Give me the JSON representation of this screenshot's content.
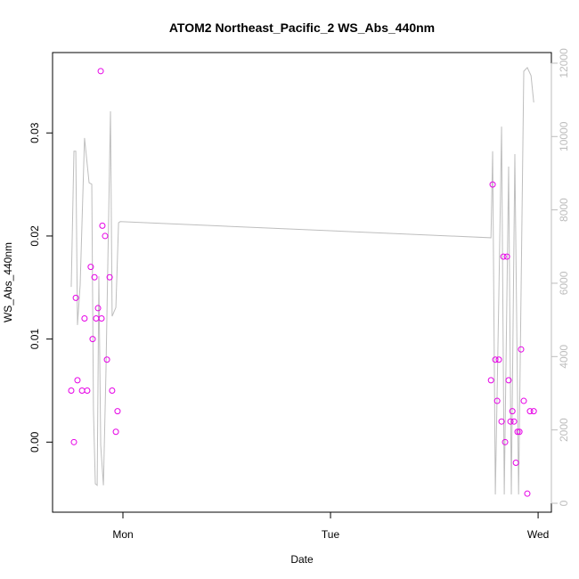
{
  "chart_data": {
    "type": "scatter",
    "title": "ATOM2 Northeast_Pacific_2 WS_Abs_440nm",
    "xlabel": "Date",
    "ylabel": "WS_Abs_440nm",
    "xlim": [
      0.661,
      3.064
    ],
    "xticks": [
      {
        "value": 1,
        "label": "Mon"
      },
      {
        "value": 2,
        "label": "Tue"
      },
      {
        "value": 3,
        "label": "Wed"
      }
    ],
    "ylim": [
      -0.0068,
      0.0378
    ],
    "yticks": [
      {
        "value": 0,
        "label": "0.00"
      },
      {
        "value": 0.01,
        "label": "0.01"
      },
      {
        "value": 0.02,
        "label": "0.02"
      },
      {
        "value": 0.03,
        "label": "0.03"
      }
    ],
    "y2lim": [
      -243,
      12290
    ],
    "y2ticks": [
      0,
      2000,
      4000,
      6000,
      8000,
      10000,
      12000
    ],
    "series": [
      {
        "color": "#e600e6",
        "x": [
          0.751,
          0.764,
          0.773,
          0.781,
          0.803,
          0.815,
          0.828,
          0.845,
          0.854,
          0.863,
          0.871,
          0.88,
          0.893,
          0.897,
          0.901,
          0.914,
          0.923,
          0.936,
          0.948,
          0.966,
          0.974,
          2.773,
          2.781,
          2.794,
          2.803,
          2.811,
          2.824,
          2.833,
          2.841,
          2.85,
          2.858,
          2.867,
          2.876,
          2.884,
          2.893,
          2.901,
          2.91,
          2.918,
          2.931,
          2.948,
          2.961,
          2.979
        ],
        "values": [
          0.005,
          0.0,
          0.014,
          0.006,
          0.005,
          0.012,
          0.005,
          0.017,
          0.01,
          0.016,
          0.012,
          0.013,
          0.036,
          0.012,
          0.021,
          0.02,
          0.008,
          0.016,
          0.005,
          0.001,
          0.003,
          0.006,
          0.025,
          0.008,
          0.004,
          0.008,
          0.002,
          0.018,
          0.0,
          0.018,
          0.006,
          0.002,
          0.003,
          0.002,
          -0.002,
          0.001,
          0.001,
          0.009,
          0.004,
          -0.005,
          0.003,
          0.003
        ]
      },
      {
        "color": "#bebebe",
        "axis": "y2",
        "x": [
          0.751,
          0.764,
          0.773,
          0.781,
          0.794,
          0.815,
          0.837,
          0.85,
          0.858,
          0.867,
          0.876,
          0.884,
          0.893,
          0.906,
          0.918,
          0.94,
          0.948,
          0.966,
          0.979,
          0.987,
          2.773,
          2.781,
          2.794,
          2.811,
          2.824,
          2.837,
          2.858,
          2.871,
          2.888,
          2.906,
          2.931,
          2.948,
          2.966,
          2.979
        ],
        "values": [
          5900,
          9600,
          9600,
          4860,
          5950,
          9960,
          8740,
          8700,
          2550,
          530,
          490,
          6190,
          1580,
          490,
          3520,
          10690,
          5100,
          5340,
          7650,
          7680,
          7240,
          9600,
          240,
          5710,
          10270,
          240,
          9180,
          240,
          9520,
          240,
          11780,
          11880,
          11660,
          10930
        ]
      }
    ]
  }
}
